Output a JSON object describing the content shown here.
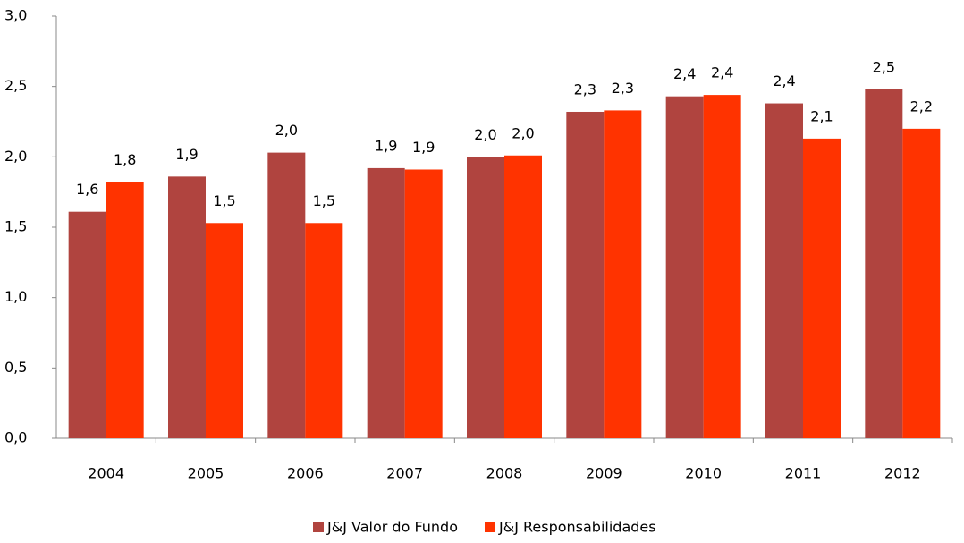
{
  "chart_data": {
    "type": "bar",
    "categories": [
      "2004",
      "2005",
      "2006",
      "2007",
      "2008",
      "2009",
      "2010",
      "2011",
      "2012"
    ],
    "series": [
      {
        "name": "J&J Valor do Fundo",
        "color": "#b0443f",
        "values": [
          1.61,
          1.86,
          2.03,
          1.92,
          2.0,
          2.32,
          2.43,
          2.38,
          2.48
        ],
        "value_labels": [
          "1,6",
          "1,9",
          "2,0",
          "1,9",
          "2,0",
          "2,3",
          "2,4",
          "2,4",
          "2,5"
        ]
      },
      {
        "name": "J&J Responsabilidades",
        "color": "#ff3300",
        "values": [
          1.82,
          1.53,
          1.53,
          1.91,
          2.01,
          2.33,
          2.44,
          2.13,
          2.2
        ],
        "value_labels": [
          "1,8",
          "1,5",
          "1,5",
          "1,9",
          "2,0",
          "2,3",
          "2,4",
          "2,1",
          "2,2"
        ]
      }
    ],
    "ylim": [
      0,
      3
    ],
    "yticks": [
      {
        "value": 0,
        "label": "0,0"
      },
      {
        "value": 0.5,
        "label": "0,5"
      },
      {
        "value": 1,
        "label": "1,0"
      },
      {
        "value": 1.5,
        "label": "1,5"
      },
      {
        "value": 2,
        "label": "2,0"
      },
      {
        "value": 2.5,
        "label": "2,5"
      },
      {
        "value": 3,
        "label": "3,0"
      }
    ],
    "legend": "bottom"
  }
}
